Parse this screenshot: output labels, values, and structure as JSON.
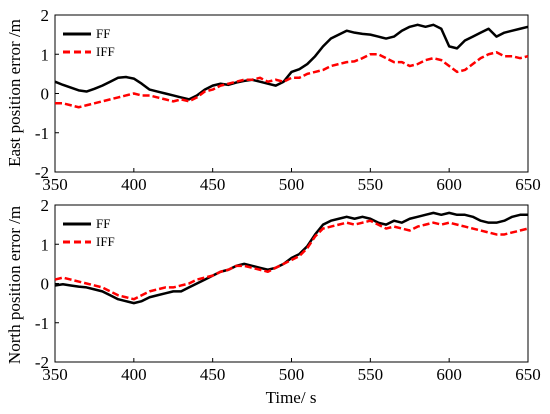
{
  "colors": {
    "FF": "#000000",
    "IFF": "#ff0000"
  },
  "chart_data": [
    {
      "type": "line",
      "title": "",
      "xlabel": "",
      "ylabel": "East position error /m",
      "xlim": [
        350,
        650
      ],
      "ylim": [
        -2,
        2
      ],
      "xticks": [
        "350",
        "400",
        "450",
        "500",
        "550",
        "600",
        "650"
      ],
      "yticks": [
        "2",
        "1",
        "0",
        "-1",
        "-2"
      ],
      "legend": "top-left",
      "series": [
        {
          "name": "FF",
          "color": "#000000",
          "style": "solid",
          "x": [
            350,
            355,
            360,
            365,
            370,
            375,
            380,
            385,
            390,
            395,
            400,
            405,
            410,
            415,
            420,
            425,
            430,
            435,
            440,
            445,
            450,
            455,
            460,
            465,
            470,
            475,
            480,
            485,
            490,
            495,
            500,
            505,
            510,
            515,
            520,
            525,
            530,
            535,
            540,
            545,
            550,
            555,
            560,
            565,
            570,
            575,
            580,
            585,
            590,
            595,
            600,
            605,
            610,
            615,
            620,
            625,
            630,
            635,
            640,
            645,
            650
          ],
          "y": [
            0.3,
            0.22,
            0.15,
            0.08,
            0.05,
            0.12,
            0.2,
            0.3,
            0.4,
            0.42,
            0.38,
            0.25,
            0.1,
            0.05,
            0.0,
            -0.05,
            -0.1,
            -0.15,
            -0.05,
            0.1,
            0.2,
            0.25,
            0.22,
            0.28,
            0.32,
            0.35,
            0.3,
            0.25,
            0.2,
            0.3,
            0.55,
            0.62,
            0.75,
            0.95,
            1.2,
            1.4,
            1.5,
            1.6,
            1.55,
            1.52,
            1.5,
            1.45,
            1.4,
            1.45,
            1.6,
            1.7,
            1.75,
            1.7,
            1.75,
            1.65,
            1.2,
            1.15,
            1.35,
            1.45,
            1.55,
            1.65,
            1.45,
            1.55,
            1.6,
            1.65,
            1.7
          ]
        },
        {
          "name": "IFF",
          "color": "#ff0000",
          "style": "dashed",
          "x": [
            350,
            355,
            360,
            365,
            370,
            375,
            380,
            385,
            390,
            395,
            400,
            405,
            410,
            415,
            420,
            425,
            430,
            435,
            440,
            445,
            450,
            455,
            460,
            465,
            470,
            475,
            480,
            485,
            490,
            495,
            500,
            505,
            510,
            515,
            520,
            525,
            530,
            535,
            540,
            545,
            550,
            555,
            560,
            565,
            570,
            575,
            580,
            585,
            590,
            595,
            600,
            605,
            610,
            615,
            620,
            625,
            630,
            635,
            640,
            645,
            650
          ],
          "y": [
            -0.25,
            -0.25,
            -0.3,
            -0.35,
            -0.3,
            -0.25,
            -0.2,
            -0.15,
            -0.1,
            -0.05,
            0.0,
            -0.05,
            -0.05,
            -0.1,
            -0.15,
            -0.2,
            -0.15,
            -0.2,
            -0.1,
            0.05,
            0.1,
            0.2,
            0.25,
            0.3,
            0.35,
            0.35,
            0.4,
            0.3,
            0.35,
            0.3,
            0.4,
            0.4,
            0.5,
            0.55,
            0.6,
            0.7,
            0.75,
            0.8,
            0.82,
            0.9,
            1.0,
            1.0,
            0.9,
            0.8,
            0.8,
            0.7,
            0.75,
            0.85,
            0.9,
            0.85,
            0.7,
            0.55,
            0.6,
            0.75,
            0.9,
            1.0,
            1.05,
            0.95,
            0.95,
            0.9,
            0.95
          ]
        }
      ]
    },
    {
      "type": "line",
      "title": "",
      "xlabel": "Time/ s",
      "ylabel": "North position error /m",
      "xlim": [
        350,
        650
      ],
      "ylim": [
        -2,
        2
      ],
      "xticks": [
        "350",
        "400",
        "450",
        "500",
        "550",
        "600",
        "650"
      ],
      "yticks": [
        "2",
        "1",
        "0",
        "-1",
        "-2"
      ],
      "legend": "top-left",
      "series": [
        {
          "name": "FF",
          "color": "#000000",
          "style": "solid",
          "x": [
            350,
            355,
            360,
            365,
            370,
            375,
            380,
            385,
            390,
            395,
            400,
            405,
            410,
            415,
            420,
            425,
            430,
            435,
            440,
            445,
            450,
            455,
            460,
            465,
            470,
            475,
            480,
            485,
            490,
            495,
            500,
            505,
            510,
            515,
            520,
            525,
            530,
            535,
            540,
            545,
            550,
            555,
            560,
            565,
            570,
            575,
            580,
            585,
            590,
            595,
            600,
            605,
            610,
            615,
            620,
            625,
            630,
            635,
            640,
            645,
            650
          ],
          "y": [
            -0.05,
            -0.02,
            -0.05,
            -0.08,
            -0.1,
            -0.15,
            -0.2,
            -0.3,
            -0.4,
            -0.45,
            -0.5,
            -0.45,
            -0.35,
            -0.3,
            -0.25,
            -0.2,
            -0.2,
            -0.1,
            0.0,
            0.1,
            0.2,
            0.3,
            0.35,
            0.45,
            0.5,
            0.45,
            0.4,
            0.35,
            0.4,
            0.5,
            0.65,
            0.75,
            0.95,
            1.25,
            1.5,
            1.6,
            1.65,
            1.7,
            1.65,
            1.7,
            1.65,
            1.55,
            1.5,
            1.6,
            1.55,
            1.65,
            1.7,
            1.75,
            1.8,
            1.75,
            1.8,
            1.75,
            1.75,
            1.7,
            1.6,
            1.55,
            1.55,
            1.6,
            1.7,
            1.75,
            1.75
          ]
        },
        {
          "name": "IFF",
          "color": "#ff0000",
          "style": "dashed",
          "x": [
            350,
            355,
            360,
            365,
            370,
            375,
            380,
            385,
            390,
            395,
            400,
            405,
            410,
            415,
            420,
            425,
            430,
            435,
            440,
            445,
            450,
            455,
            460,
            465,
            470,
            475,
            480,
            485,
            490,
            495,
            500,
            505,
            510,
            515,
            520,
            525,
            530,
            535,
            540,
            545,
            550,
            555,
            560,
            565,
            570,
            575,
            580,
            585,
            590,
            595,
            600,
            605,
            610,
            615,
            620,
            625,
            630,
            635,
            640,
            645,
            650
          ],
          "y": [
            0.1,
            0.15,
            0.1,
            0.05,
            0.0,
            -0.05,
            -0.1,
            -0.2,
            -0.3,
            -0.35,
            -0.4,
            -0.3,
            -0.2,
            -0.15,
            -0.1,
            -0.1,
            -0.05,
            0.0,
            0.1,
            0.15,
            0.2,
            0.3,
            0.35,
            0.45,
            0.45,
            0.4,
            0.35,
            0.3,
            0.4,
            0.5,
            0.6,
            0.7,
            0.9,
            1.2,
            1.4,
            1.45,
            1.5,
            1.55,
            1.5,
            1.55,
            1.6,
            1.5,
            1.4,
            1.45,
            1.4,
            1.35,
            1.45,
            1.5,
            1.55,
            1.5,
            1.55,
            1.5,
            1.45,
            1.4,
            1.35,
            1.3,
            1.25,
            1.25,
            1.3,
            1.35,
            1.4
          ]
        }
      ]
    }
  ]
}
